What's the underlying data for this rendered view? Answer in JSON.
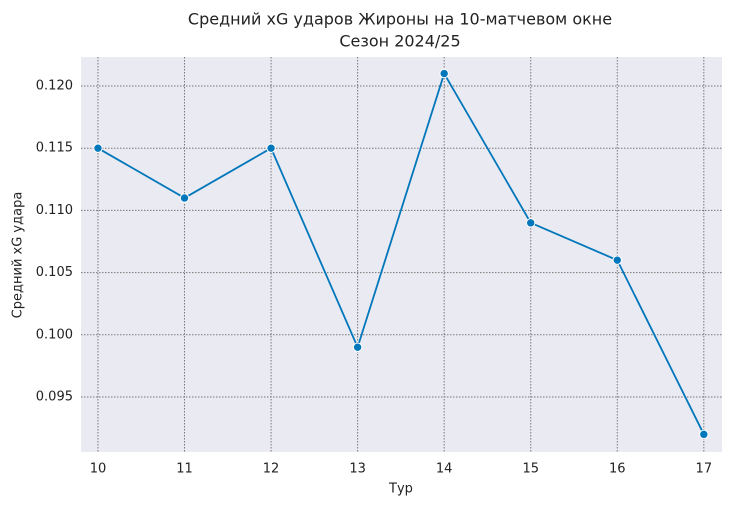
{
  "chart_data": {
    "type": "line",
    "title": "Средний xG ударов Жироны на 10-матчевом окне",
    "subtitle": "Сезон 2024/25",
    "x_label": "Тур",
    "y_label": "Средний xG удара",
    "x": [
      10,
      11,
      12,
      13,
      14,
      15,
      16,
      17
    ],
    "series": [
      {
        "color": "#0077bb",
        "values": [
          0.115,
          0.111,
          0.115,
          0.099,
          0.121,
          0.109,
          0.106,
          0.092
        ]
      }
    ],
    "xlim": [
      9.804,
      17.21
    ],
    "ylim": [
      0.09058,
      0.12233
    ],
    "xticks": [
      10,
      11,
      12,
      13,
      14,
      15,
      16,
      17
    ],
    "yticks": [
      {
        "value": 0.095,
        "label": "0.095"
      },
      {
        "value": 0.1,
        "label": "0.100"
      },
      {
        "value": 0.105,
        "label": "0.105"
      },
      {
        "value": 0.11,
        "label": "0.110"
      },
      {
        "value": 0.115,
        "label": "0.115"
      },
      {
        "value": 0.12,
        "label": "0.120"
      }
    ],
    "grid": true
  }
}
